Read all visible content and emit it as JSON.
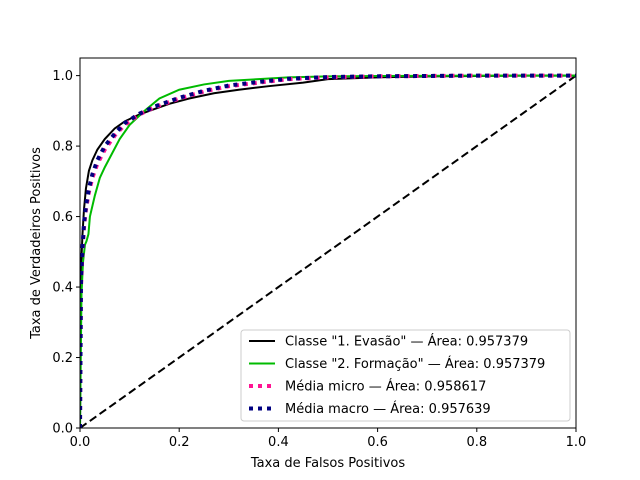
{
  "chart_data": {
    "type": "line",
    "title": "",
    "xlabel": "Taxa de Falsos Positivos",
    "ylabel": "Taxa de Verdadeiros Positivos",
    "xlim": [
      0.0,
      1.0
    ],
    "ylim": [
      0.0,
      1.05
    ],
    "xticks": [
      "0.0",
      "0.2",
      "0.4",
      "0.6",
      "0.8",
      "1.0"
    ],
    "yticks": [
      "0.0",
      "0.2",
      "0.4",
      "0.6",
      "0.8",
      "1.0"
    ],
    "grid": false,
    "legend_position": "bottom-right",
    "series": [
      {
        "name": "Classe \"1. Evasão\" — Área: 0.957379",
        "color": "#000000",
        "style": "solid",
        "x": [
          0.0,
          0.002,
          0.005,
          0.008,
          0.012,
          0.018,
          0.025,
          0.035,
          0.05,
          0.07,
          0.09,
          0.12,
          0.15,
          0.18,
          0.22,
          0.27,
          0.32,
          0.38,
          0.45,
          0.5,
          0.6,
          0.7,
          0.8,
          0.9,
          1.0
        ],
        "y": [
          0.0,
          0.45,
          0.55,
          0.62,
          0.68,
          0.73,
          0.76,
          0.79,
          0.82,
          0.85,
          0.87,
          0.89,
          0.905,
          0.92,
          0.935,
          0.95,
          0.96,
          0.97,
          0.98,
          0.99,
          0.995,
          0.998,
          0.999,
          1.0,
          1.0
        ]
      },
      {
        "name": "Classe \"2. Formação\" — Área: 0.957379",
        "color": "#00bb00",
        "style": "solid",
        "x": [
          0.0,
          0.003,
          0.006,
          0.01,
          0.013,
          0.017,
          0.02,
          0.03,
          0.04,
          0.05,
          0.065,
          0.08,
          0.1,
          0.13,
          0.16,
          0.2,
          0.25,
          0.3,
          0.36,
          0.42,
          0.5,
          0.6,
          0.8,
          1.0
        ],
        "y": [
          0.0,
          0.38,
          0.47,
          0.52,
          0.53,
          0.55,
          0.6,
          0.66,
          0.71,
          0.74,
          0.78,
          0.82,
          0.86,
          0.9,
          0.935,
          0.96,
          0.975,
          0.985,
          0.99,
          0.995,
          0.998,
          0.999,
          1.0,
          1.0
        ]
      },
      {
        "name": "Média micro — Área: 0.958617",
        "color": "#ff1493",
        "style": "dotted",
        "x": [
          0.0,
          0.002,
          0.005,
          0.008,
          0.012,
          0.018,
          0.025,
          0.035,
          0.05,
          0.07,
          0.09,
          0.12,
          0.15,
          0.2,
          0.25,
          0.3,
          0.36,
          0.42,
          0.5,
          0.6,
          0.8,
          1.0
        ],
        "y": [
          0.0,
          0.4,
          0.5,
          0.57,
          0.62,
          0.67,
          0.71,
          0.75,
          0.79,
          0.83,
          0.86,
          0.89,
          0.91,
          0.935,
          0.955,
          0.97,
          0.98,
          0.99,
          0.995,
          0.998,
          1.0,
          1.0
        ]
      },
      {
        "name": "Média macro — Área: 0.957639",
        "color": "#000080",
        "style": "dotted",
        "x": [
          0.0,
          0.002,
          0.005,
          0.008,
          0.012,
          0.018,
          0.025,
          0.035,
          0.05,
          0.07,
          0.09,
          0.12,
          0.15,
          0.2,
          0.25,
          0.3,
          0.36,
          0.42,
          0.5,
          0.6,
          0.8,
          1.0
        ],
        "y": [
          0.0,
          0.42,
          0.51,
          0.58,
          0.63,
          0.68,
          0.72,
          0.76,
          0.8,
          0.835,
          0.865,
          0.892,
          0.912,
          0.937,
          0.957,
          0.972,
          0.982,
          0.991,
          0.996,
          0.998,
          1.0,
          1.0
        ]
      },
      {
        "name": "",
        "color": "#000000",
        "style": "dashed",
        "x": [
          0.0,
          1.0
        ],
        "y": [
          0.0,
          1.0
        ]
      }
    ]
  }
}
